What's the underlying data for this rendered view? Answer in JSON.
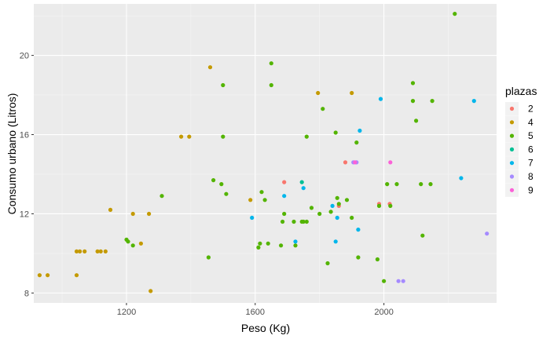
{
  "chart_data": {
    "type": "scatter",
    "xlabel": "Peso (Kg)",
    "ylabel": "Consumo urbano (Litros)",
    "xlim": [
      912,
      2350
    ],
    "ylim": [
      7.5,
      22.6
    ],
    "x_ticks": [
      1200,
      1600,
      2000
    ],
    "x_minor_ticks": [
      1000,
      1400,
      1800,
      2200
    ],
    "y_ticks": [
      8,
      12,
      16,
      20
    ],
    "y_minor_ticks": [
      10,
      14,
      18,
      22
    ],
    "x_tick_labels": [
      "1200",
      "1600",
      "2000"
    ],
    "y_tick_labels": [
      "8",
      "12",
      "16",
      "20"
    ],
    "grid": true,
    "legend": {
      "title": "plazas",
      "position": "right",
      "entries": [
        {
          "label": "2",
          "color": "#F8766D"
        },
        {
          "label": "4",
          "color": "#C49A00"
        },
        {
          "label": "5",
          "color": "#53B400"
        },
        {
          "label": "6",
          "color": "#00C094"
        },
        {
          "label": "7",
          "color": "#00B6EB"
        },
        {
          "label": "8",
          "color": "#A58AFF"
        },
        {
          "label": "9",
          "color": "#FB61D7"
        }
      ]
    },
    "series": [
      {
        "name": "2",
        "color": "#F8766D",
        "points": [
          [
            1690,
            13.6
          ],
          [
            1880,
            14.6
          ],
          [
            1985,
            12.5
          ],
          [
            1860,
            12.4
          ],
          [
            2018,
            12.5
          ]
        ]
      },
      {
        "name": "4",
        "color": "#C49A00",
        "points": [
          [
            930,
            8.9
          ],
          [
            955,
            8.9
          ],
          [
            1045,
            8.9
          ],
          [
            1045,
            10.1
          ],
          [
            1055,
            10.1
          ],
          [
            1070,
            10.1
          ],
          [
            1110,
            10.1
          ],
          [
            1120,
            10.1
          ],
          [
            1135,
            10.1
          ],
          [
            1150,
            12.2
          ],
          [
            1220,
            12.0
          ],
          [
            1245,
            10.5
          ],
          [
            1270,
            12.0
          ],
          [
            1275,
            8.1
          ],
          [
            1370,
            15.9
          ],
          [
            1395,
            15.9
          ],
          [
            1460,
            19.4
          ],
          [
            1585,
            12.7
          ],
          [
            1795,
            18.1
          ],
          [
            1900,
            18.1
          ]
        ]
      },
      {
        "name": "5",
        "color": "#53B400",
        "points": [
          [
            1200,
            10.7
          ],
          [
            1205,
            10.6
          ],
          [
            1220,
            10.4
          ],
          [
            1310,
            12.9
          ],
          [
            1455,
            9.8
          ],
          [
            1470,
            13.7
          ],
          [
            1495,
            13.5
          ],
          [
            1500,
            18.5
          ],
          [
            1500,
            15.9
          ],
          [
            1510,
            13.0
          ],
          [
            1610,
            10.3
          ],
          [
            1615,
            10.5
          ],
          [
            1620,
            13.1
          ],
          [
            1630,
            12.7
          ],
          [
            1640,
            10.5
          ],
          [
            1650,
            19.6
          ],
          [
            1650,
            18.5
          ],
          [
            1680,
            10.4
          ],
          [
            1685,
            11.6
          ],
          [
            1690,
            12.0
          ],
          [
            1720,
            11.6
          ],
          [
            1725,
            10.4
          ],
          [
            1745,
            11.6
          ],
          [
            1750,
            11.6
          ],
          [
            1760,
            11.6
          ],
          [
            1760,
            15.9
          ],
          [
            1775,
            12.3
          ],
          [
            1800,
            12.0
          ],
          [
            1810,
            17.3
          ],
          [
            1825,
            9.5
          ],
          [
            1835,
            12.1
          ],
          [
            1850,
            16.1
          ],
          [
            1855,
            12.8
          ],
          [
            1860,
            12.5
          ],
          [
            1885,
            12.7
          ],
          [
            1900,
            11.8
          ],
          [
            1915,
            15.6
          ],
          [
            1920,
            9.8
          ],
          [
            1980,
            9.7
          ],
          [
            1985,
            12.4
          ],
          [
            2000,
            8.6
          ],
          [
            2010,
            13.5
          ],
          [
            2020,
            12.4
          ],
          [
            2040,
            13.5
          ],
          [
            2090,
            18.6
          ],
          [
            2090,
            17.7
          ],
          [
            2100,
            16.7
          ],
          [
            2115,
            13.5
          ],
          [
            2120,
            10.9
          ],
          [
            2145,
            13.5
          ],
          [
            2150,
            17.7
          ],
          [
            2220,
            22.1
          ]
        ]
      },
      {
        "name": "6",
        "color": "#00C094",
        "points": [
          [
            1745,
            13.6
          ]
        ]
      },
      {
        "name": "7",
        "color": "#00B6EB",
        "points": [
          [
            1590,
            11.8
          ],
          [
            1690,
            12.9
          ],
          [
            1725,
            10.6
          ],
          [
            1750,
            13.3
          ],
          [
            1840,
            12.4
          ],
          [
            1850,
            10.6
          ],
          [
            1855,
            11.8
          ],
          [
            1920,
            11.2
          ],
          [
            1925,
            16.2
          ],
          [
            1990,
            17.8
          ],
          [
            2240,
            13.8
          ],
          [
            2280,
            17.7
          ]
        ]
      },
      {
        "name": "8",
        "color": "#A58AFF",
        "points": [
          [
            1905,
            14.6
          ],
          [
            1915,
            14.6
          ],
          [
            2045,
            8.6
          ],
          [
            2060,
            8.6
          ],
          [
            2320,
            11.0
          ]
        ]
      },
      {
        "name": "9",
        "color": "#FB61D7",
        "points": [
          [
            1910,
            14.6
          ],
          [
            2020,
            14.6
          ]
        ]
      }
    ]
  }
}
